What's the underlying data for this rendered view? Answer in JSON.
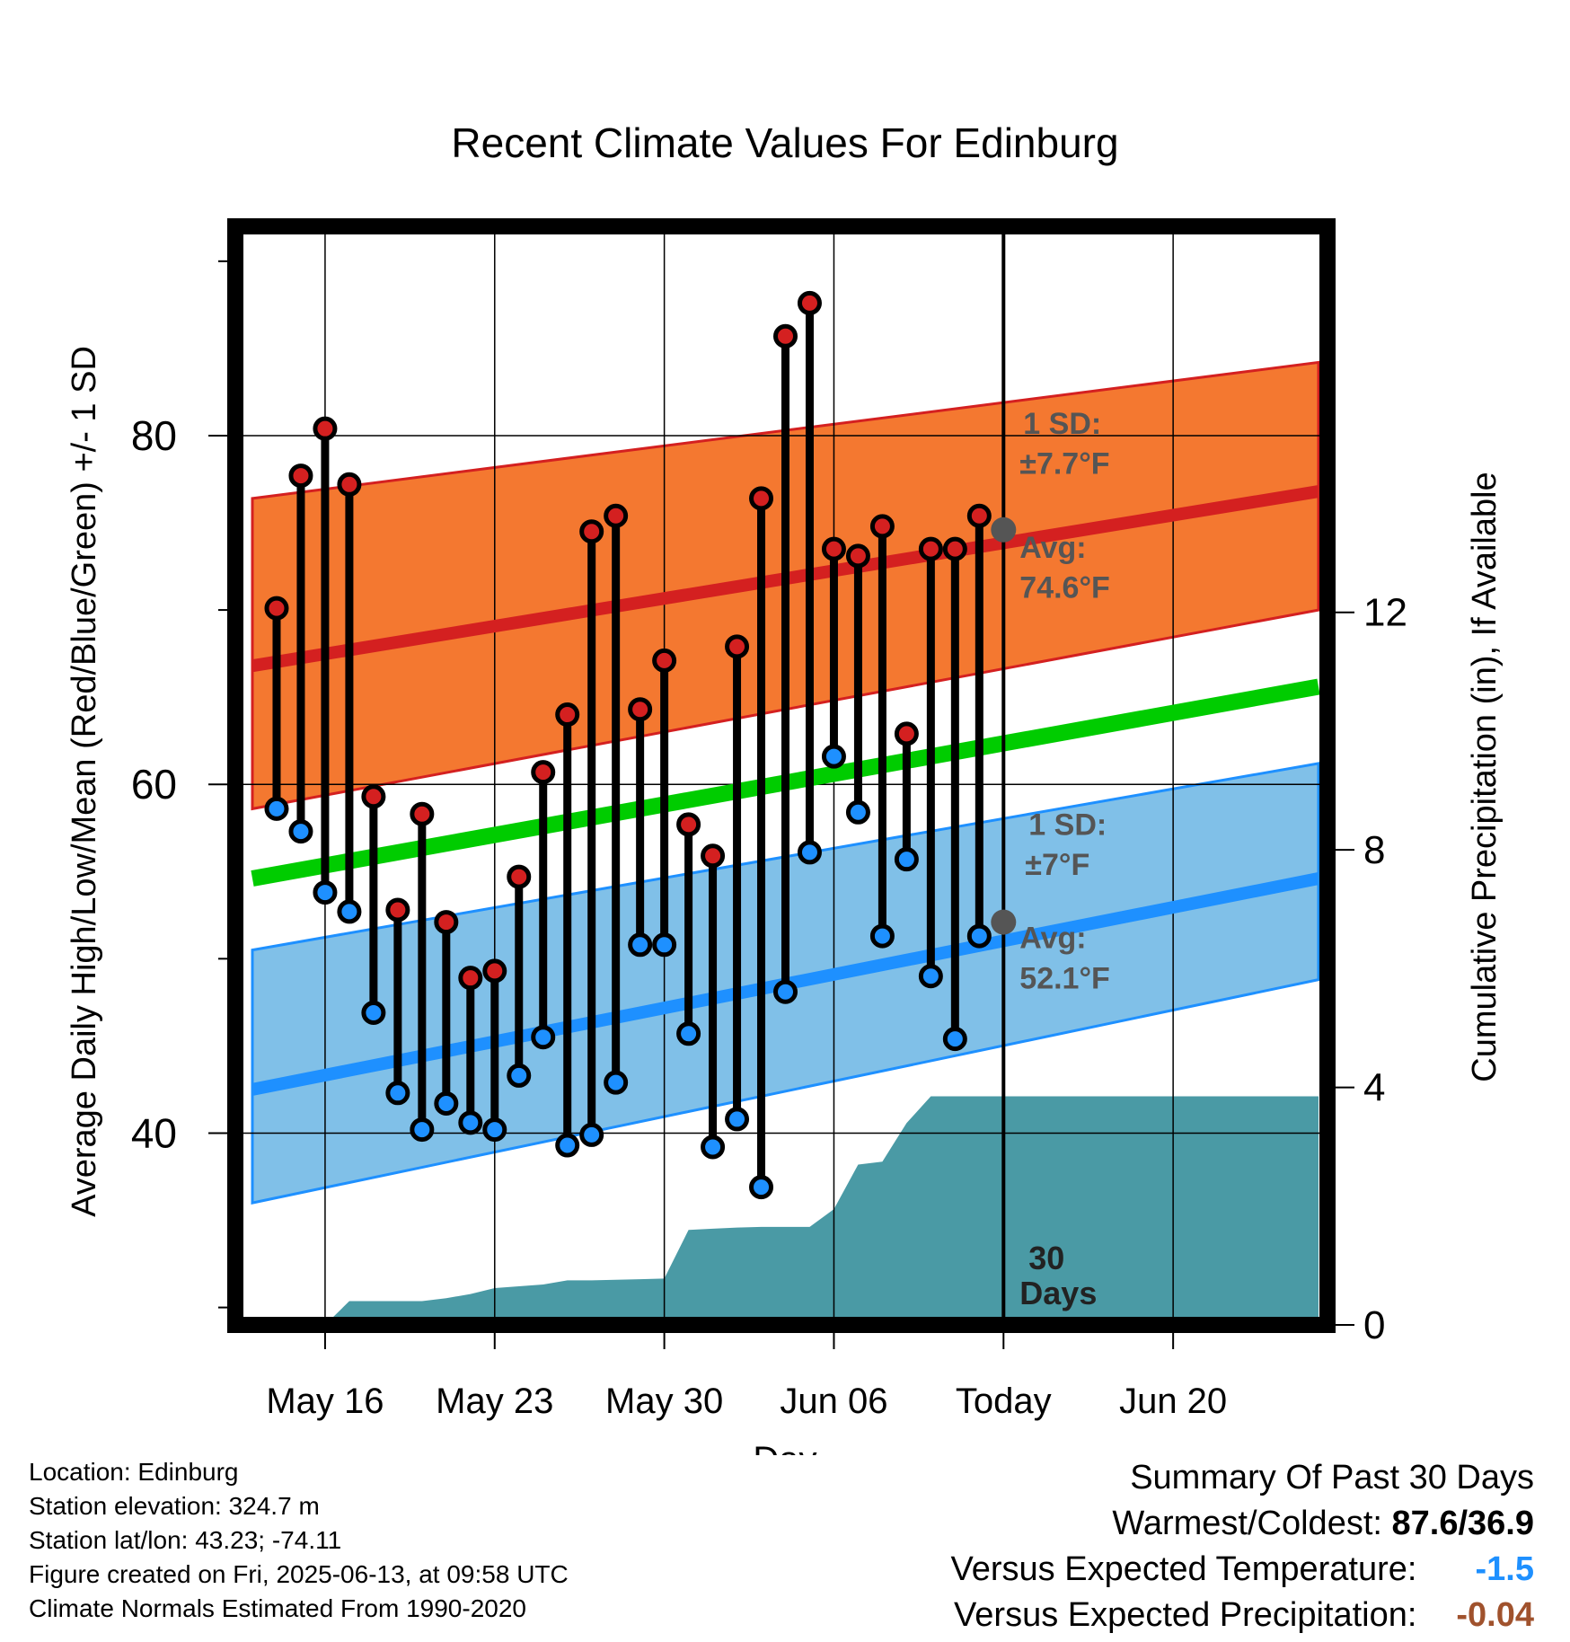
{
  "chart_data": {
    "type": "line",
    "title": "Recent Climate Values For Edinburg",
    "xlabel": "Day",
    "ylabel": "Average Daily High/Low/Mean (Red/Blue/Green) +/- 1 SD",
    "y2label": "Cumulative Precipitation (in), If Available",
    "xlim_days": [
      0,
      44
    ],
    "ylim": [
      29,
      92
    ],
    "y2lim": [
      0,
      18.5
    ],
    "y_ticks": [
      40,
      60,
      80
    ],
    "y2_ticks": [
      0,
      4,
      8,
      12
    ],
    "x_ticks": [
      {
        "day": 3,
        "label": "May 16"
      },
      {
        "day": 10,
        "label": "May 23"
      },
      {
        "day": 17,
        "label": "May 30"
      },
      {
        "day": 24,
        "label": "Jun 06"
      },
      {
        "day": 31,
        "label": "Today"
      },
      {
        "day": 38,
        "label": "Jun 20"
      }
    ],
    "today_day": 31,
    "normals": {
      "mean": {
        "start": 54.6,
        "end": 65.6
      },
      "high": {
        "start": 66.8,
        "end": 76.8,
        "sd_upper_start": 76.4,
        "sd_upper_end": 84.2,
        "sd_lower_start": 58.6,
        "sd_lower_end": 70.0
      },
      "low": {
        "start": 42.5,
        "end": 54.6,
        "sd_upper_start": 50.5,
        "sd_upper_end": 61.2,
        "sd_lower_start": 36.0,
        "sd_lower_end": 48.8
      }
    },
    "observed": {
      "days": [
        1,
        2,
        3,
        4,
        5,
        6,
        7,
        8,
        9,
        10,
        11,
        12,
        13,
        14,
        15,
        16,
        17,
        18,
        19,
        20,
        21,
        22,
        23,
        24,
        25,
        26,
        27,
        28,
        29,
        30
      ],
      "highs": [
        70.1,
        77.7,
        80.4,
        77.2,
        59.3,
        52.8,
        58.3,
        52.1,
        48.9,
        49.3,
        54.7,
        60.7,
        64.0,
        74.5,
        75.4,
        64.3,
        67.1,
        57.7,
        55.9,
        67.9,
        76.4,
        85.7,
        87.6,
        73.5,
        73.1,
        74.8,
        62.9,
        73.5,
        73.5,
        75.4
      ],
      "lows": [
        58.6,
        57.3,
        53.8,
        52.7,
        46.9,
        42.3,
        40.2,
        41.7,
        40.6,
        40.2,
        43.3,
        45.5,
        39.3,
        39.9,
        42.9,
        50.8,
        50.8,
        45.7,
        39.2,
        40.8,
        36.9,
        48.1,
        56.1,
        61.6,
        58.4,
        51.3,
        55.7,
        49.0,
        45.4,
        51.3
      ]
    },
    "precip": {
      "days": [
        3,
        4,
        5,
        6,
        7,
        8,
        9,
        10,
        11,
        12,
        13,
        14,
        15,
        16,
        17,
        18,
        19,
        20,
        21,
        22,
        23,
        24,
        25,
        26,
        27,
        28,
        29,
        30,
        31,
        44
      ],
      "cumulative": [
        0.0,
        0.4,
        0.4,
        0.4,
        0.4,
        0.45,
        0.52,
        0.62,
        0.65,
        0.68,
        0.75,
        0.75,
        0.76,
        0.77,
        0.78,
        1.6,
        1.62,
        1.64,
        1.65,
        1.65,
        1.65,
        1.95,
        2.7,
        2.75,
        3.4,
        3.85,
        3.85,
        3.85,
        3.85,
        3.85
      ]
    },
    "annotations": {
      "high_sd": "1 SD: ±7.7°F",
      "high_avg": "Avg: 74.6°F",
      "low_sd": "1 SD: ±7°F",
      "low_avg": "Avg: 52.1°F",
      "days_label": "30 Days",
      "today_high_avg": 74.6,
      "today_low_avg": 52.1
    },
    "colors": {
      "high_band": "#f47830",
      "high_line": "#d42020",
      "mean_line": "#00cc00",
      "low_band": "#80c0e8",
      "low_line": "#1e90ff",
      "precip_fill": "#4a9aa5",
      "high_point": "#d42020",
      "low_point": "#1e90ff",
      "annotation_text": "#555555",
      "today_marker": "#555555"
    }
  },
  "footer": {
    "location": "Location: Edinburg",
    "elevation": "Station elevation: 324.7 m",
    "latlon": "Station lat/lon: 43.23; -74.11",
    "created": "Figure created on Fri, 2025-06-13, at 09:58 UTC",
    "normals": "Climate Normals Estimated From 1990-2020"
  },
  "summary": {
    "title": "Summary Of Past 30 Days",
    "warm_cold_label": "Warmest/Coldest:",
    "warm_cold_value": "87.6/36.9",
    "temp_label": "Versus Expected Temperature:",
    "temp_value": "-1.5",
    "temp_color": "#1e90ff",
    "precip_label": "Versus Expected Precipitation:",
    "precip_value": "-0.04",
    "precip_color": "#a0522d"
  }
}
